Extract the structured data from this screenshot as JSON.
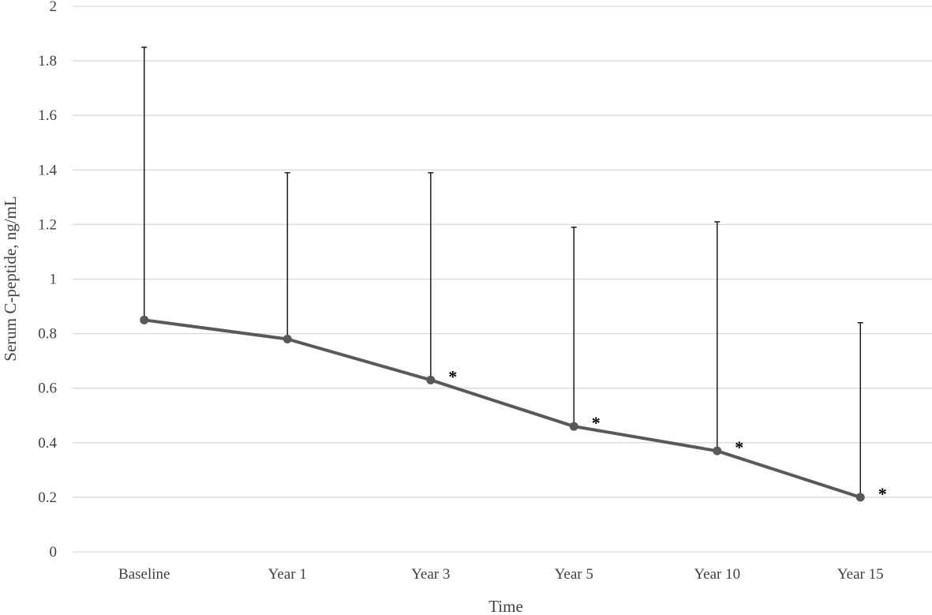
{
  "chart_data": {
    "type": "line",
    "title": "",
    "xlabel": "Time",
    "ylabel": "Serum C-peptide, ng/mL",
    "categories": [
      "Baseline",
      "Year 1",
      "Year 3",
      "Year 5",
      "Year 10",
      "Year 15"
    ],
    "series": [
      {
        "values": [
          0.85,
          0.78,
          0.63,
          0.46,
          0.37,
          0.2
        ],
        "error_upper": [
          1.85,
          1.39,
          1.39,
          1.19,
          1.21,
          0.84
        ],
        "significance": [
          "",
          "",
          "*",
          "*",
          "*",
          "*"
        ]
      }
    ],
    "ylim": [
      0,
      2
    ],
    "yticks": [
      0,
      0.2,
      0.4,
      0.6,
      0.8,
      1,
      1.2,
      1.4,
      1.6,
      1.8,
      2
    ],
    "ytick_labels": [
      "0",
      "0.2",
      "0.4",
      "0.6",
      "0.8",
      "1",
      "1.2",
      "1.4",
      "1.6",
      "1.8",
      "2"
    ],
    "grid": true,
    "legend": "none",
    "colors": {
      "line": "#595959",
      "error_bar": "#262626",
      "grid": "#d9d9d9",
      "text": "#404040"
    }
  }
}
